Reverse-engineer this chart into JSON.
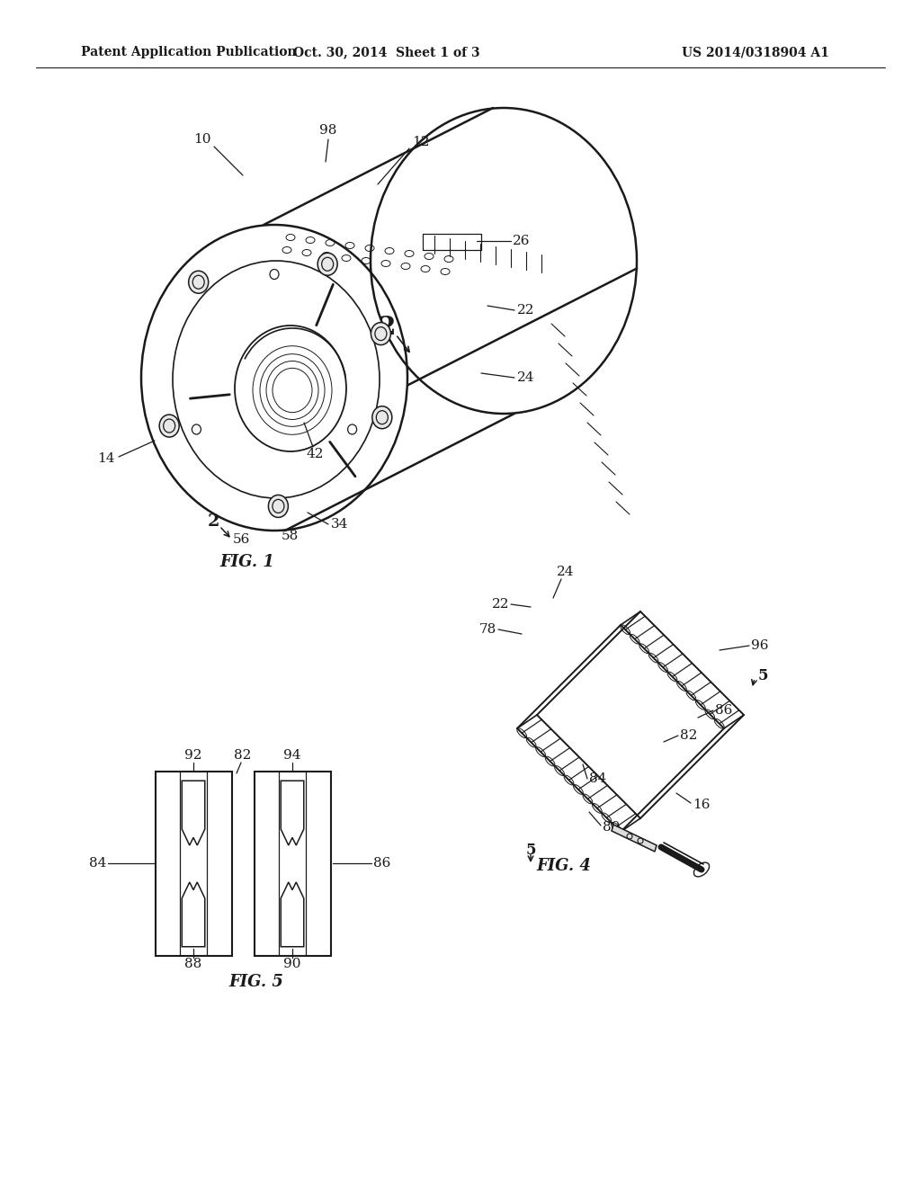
{
  "bg_color": "#ffffff",
  "header_left": "Patent Application Publication",
  "header_mid": "Oct. 30, 2014  Sheet 1 of 3",
  "header_right": "US 2014/0318904 A1",
  "fig1_label": "FIG. 1",
  "fig4_label": "FIG. 4",
  "fig5_label": "FIG. 5",
  "line_color": "#1a1a1a",
  "text_color": "#1a1a1a"
}
